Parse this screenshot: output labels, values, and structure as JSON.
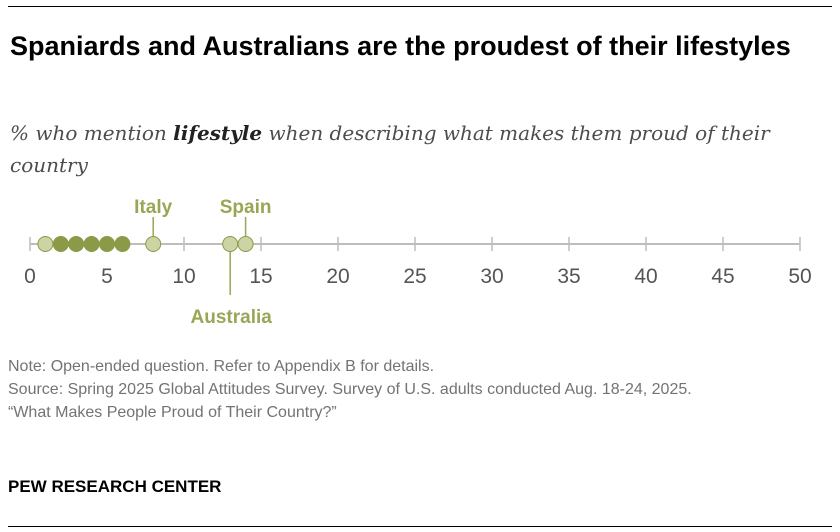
{
  "title": "Spaniards and Australians are the proudest of their lifestyles",
  "subtitle": {
    "prefix": "% who mention ",
    "emphasis": "lifestyle",
    "suffix": " when describing what makes them proud of their country"
  },
  "chart_data": {
    "type": "scatter",
    "title": "Spaniards and Australians are the proudest of their lifestyles",
    "xlabel": "",
    "ylabel": "",
    "xlim": [
      0,
      50
    ],
    "xticks": [
      0,
      5,
      10,
      15,
      20,
      25,
      30,
      35,
      40,
      45,
      50
    ],
    "grid": false,
    "points": [
      {
        "value": 1,
        "label": "",
        "highlight": false
      },
      {
        "value": 2,
        "label": "",
        "highlight": false
      },
      {
        "value": 3,
        "label": "",
        "highlight": false
      },
      {
        "value": 4,
        "label": "",
        "highlight": false
      },
      {
        "value": 5,
        "label": "",
        "highlight": false
      },
      {
        "value": 6,
        "label": "",
        "highlight": false
      },
      {
        "value": 8,
        "label": "Italy",
        "highlight": true,
        "label_side": "above"
      },
      {
        "value": 13,
        "label": "Australia",
        "highlight": true,
        "label_side": "below"
      },
      {
        "value": 14,
        "label": "Spain",
        "highlight": true,
        "label_side": "above"
      }
    ],
    "colors": {
      "point_dark": "#8b9a46",
      "point_light": "#ccd3a4",
      "label": "#9aa655",
      "axis": "#bdbdbd",
      "tick_label": "#555555"
    }
  },
  "notes": {
    "note": "Note: Open-ended question. Refer to Appendix B for details.",
    "source": "Source: Spring 2025 Global Attitudes Survey. Survey of U.S. adults conducted Aug. 18-24, 2025.",
    "report": "“What Makes People Proud of Their Country?”"
  },
  "brand": "PEW RESEARCH CENTER"
}
